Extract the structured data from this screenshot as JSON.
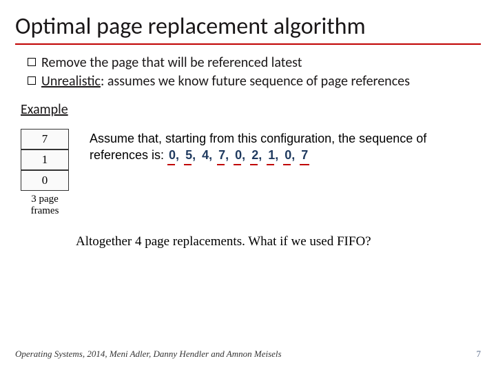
{
  "title": "Optimal page replacement algorithm",
  "bullets": [
    "Remove the page that will be referenced latest",
    "Unrealistic: assumes we know future sequence of page references"
  ],
  "bullet_underline_word": "Unrealistic",
  "bullet2_rest": ": assumes we know future sequence of page references",
  "example_label": "Example",
  "frames": [
    "7",
    "1",
    "0"
  ],
  "frames_caption_l1": "3 page",
  "frames_caption_l2": "frames",
  "assume_prefix": "Assume that, starting from this configuration, the sequence of references is: ",
  "sequence": [
    "0,",
    "5,",
    "4,",
    "7,",
    "0,",
    "2,",
    "1,",
    "0,",
    "7"
  ],
  "seq_underlined": [
    true,
    true,
    false,
    true,
    true,
    true,
    true,
    true,
    true
  ],
  "conclusion": "Altogether 4 page replacements. What if we used FIFO?",
  "footer_left": "Operating Systems, 2014, Meni Adler, Danny Hendler and Amnon Meisels",
  "page_number": "7",
  "colors": {
    "title_rule": "#c00000",
    "seq_text": "#1f3a5f",
    "seq_underline": "#c00000",
    "body_text": "#1a1718"
  },
  "typography": {
    "title_fontsize": 34,
    "bullet_fontsize": 20,
    "assume_fontsize": 18,
    "conclusion_fontsize": 19,
    "footer_fontsize": 13
  }
}
